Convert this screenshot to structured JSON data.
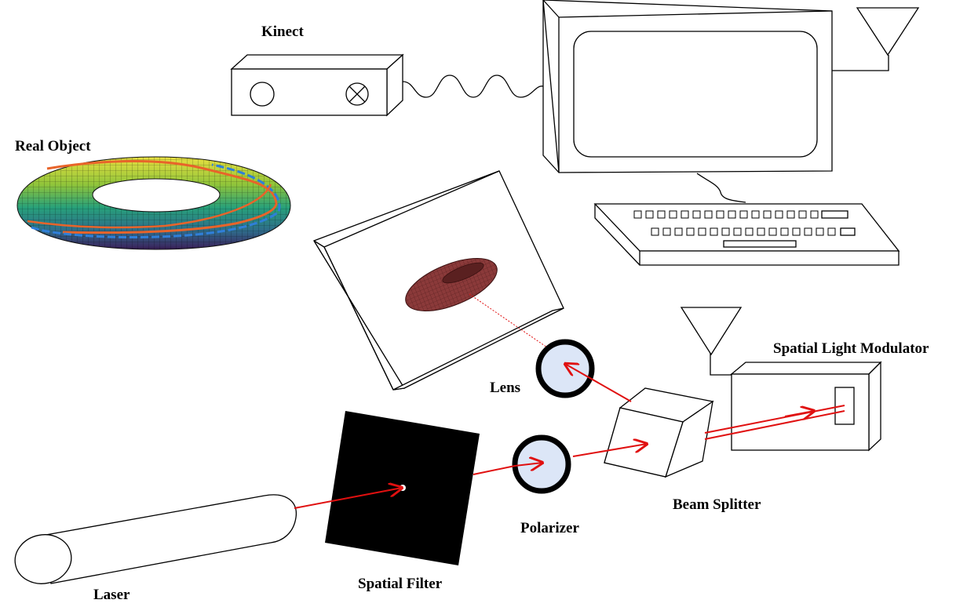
{
  "labels": {
    "kinect": "Kinect",
    "real_object": "Real Object",
    "lens": "Lens",
    "spatial_light_modulator": "Spatial Light Modulator",
    "beam_splitter": "Beam Splitter",
    "polarizer": "Polarizer",
    "spatial_filter": "Spatial Filter",
    "laser": "Laser"
  },
  "colors": {
    "beam": "#e01010",
    "optic_fill": "#dce6f7",
    "optic_rim": "#000000",
    "hologram_torus": "#8b3a3a",
    "torus_stripe_orange": "#e8642a",
    "torus_stripe_blue": "#2f7fd9",
    "torus_gradient": [
      "#3b1f5a",
      "#2e6b8a",
      "#27a07a",
      "#8fc43a",
      "#e8e040"
    ]
  },
  "icons": [
    "antenna-icon",
    "kinect-lens-icon",
    "kinect-emitter-icon"
  ]
}
